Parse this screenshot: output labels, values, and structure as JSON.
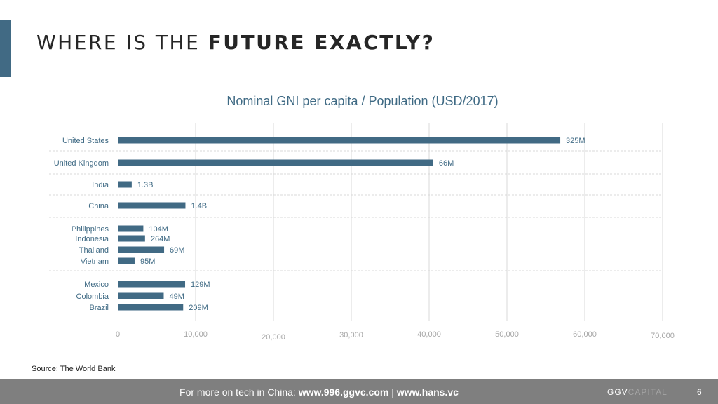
{
  "slide": {
    "title_regular": "WHERE IS THE ",
    "title_bold": "FUTURE EXACTLY?",
    "source": "Source: The World Bank",
    "page_number": "6"
  },
  "footer": {
    "prefix": "For more on tech in China: ",
    "url1": "www.996.ggvc.com",
    "separator": " | ",
    "url2": "www.hans.vc",
    "logo_main": "GGV",
    "logo_faint": "CAPITAL"
  },
  "colors": {
    "accent": "#416a84",
    "bar": "#416a84",
    "label": "#3f6a84",
    "grid": "#d9d9d9",
    "tick": "#a6a6a6",
    "footer_bg": "#7f7f7f"
  },
  "chart_data": {
    "type": "bar",
    "orientation": "horizontal",
    "title": "Nominal GNI per capita  / Population (USD/2017)",
    "categories": [
      "United States",
      "United Kingdom",
      "India",
      "China",
      "Philippines",
      "Indonesia",
      "Thailand",
      "Vietnam",
      "Mexico",
      "Colombia",
      "Brazil"
    ],
    "values": [
      56850,
      40530,
      1790,
      8690,
      3280,
      3500,
      5950,
      2160,
      8650,
      5900,
      8400
    ],
    "data_labels": [
      "325M",
      "66M",
      "1.3B",
      "1.4B",
      "104M",
      "264M",
      "69M",
      "95M",
      "129M",
      "49M",
      "209M"
    ],
    "groups": [
      [
        "United States"
      ],
      [
        "United Kingdom"
      ],
      [
        "India"
      ],
      [
        "China"
      ],
      [
        "Philippines",
        "Indonesia",
        "Thailand",
        "Vietnam"
      ],
      [
        "Mexico",
        "Colombia",
        "Brazil"
      ]
    ],
    "xlim": [
      0,
      70000
    ],
    "x_ticks": [
      0,
      10000,
      20000,
      30000,
      40000,
      50000,
      60000,
      70000
    ],
    "x_tick_labels": [
      "0",
      "10,000",
      "20,000",
      "30,000",
      "40,000",
      "50,000",
      "60,000",
      "70,000"
    ],
    "grid": true
  }
}
